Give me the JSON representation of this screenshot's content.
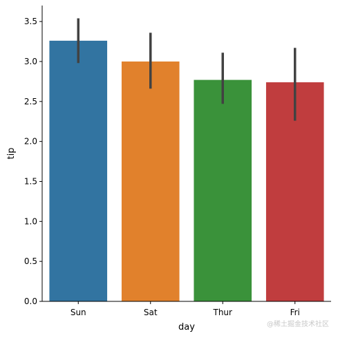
{
  "chart_data": {
    "type": "bar",
    "categories": [
      "Sun",
      "Sat",
      "Thur",
      "Fri"
    ],
    "values": [
      3.26,
      3.0,
      2.77,
      2.74
    ],
    "error_bars": [
      [
        2.98,
        3.54
      ],
      [
        2.66,
        3.36
      ],
      [
        2.47,
        3.11
      ],
      [
        2.26,
        3.17
      ]
    ],
    "colors": [
      "#3274a1",
      "#e1812c",
      "#3a923a",
      "#c03d3e"
    ],
    "error_bar_color": "#424242",
    "xlabel": "day",
    "ylabel": "tip",
    "ylim": [
      0,
      3.7
    ],
    "yticks": [
      0.0,
      0.5,
      1.0,
      1.5,
      2.0,
      2.5,
      3.0,
      3.5
    ],
    "ytick_labels": [
      "0.0",
      "0.5",
      "1.0",
      "1.5",
      "2.0",
      "2.5",
      "3.0",
      "3.5"
    ],
    "grid": false,
    "spines": [
      "left",
      "bottom"
    ]
  },
  "watermark": "@稀土掘金技术社区"
}
